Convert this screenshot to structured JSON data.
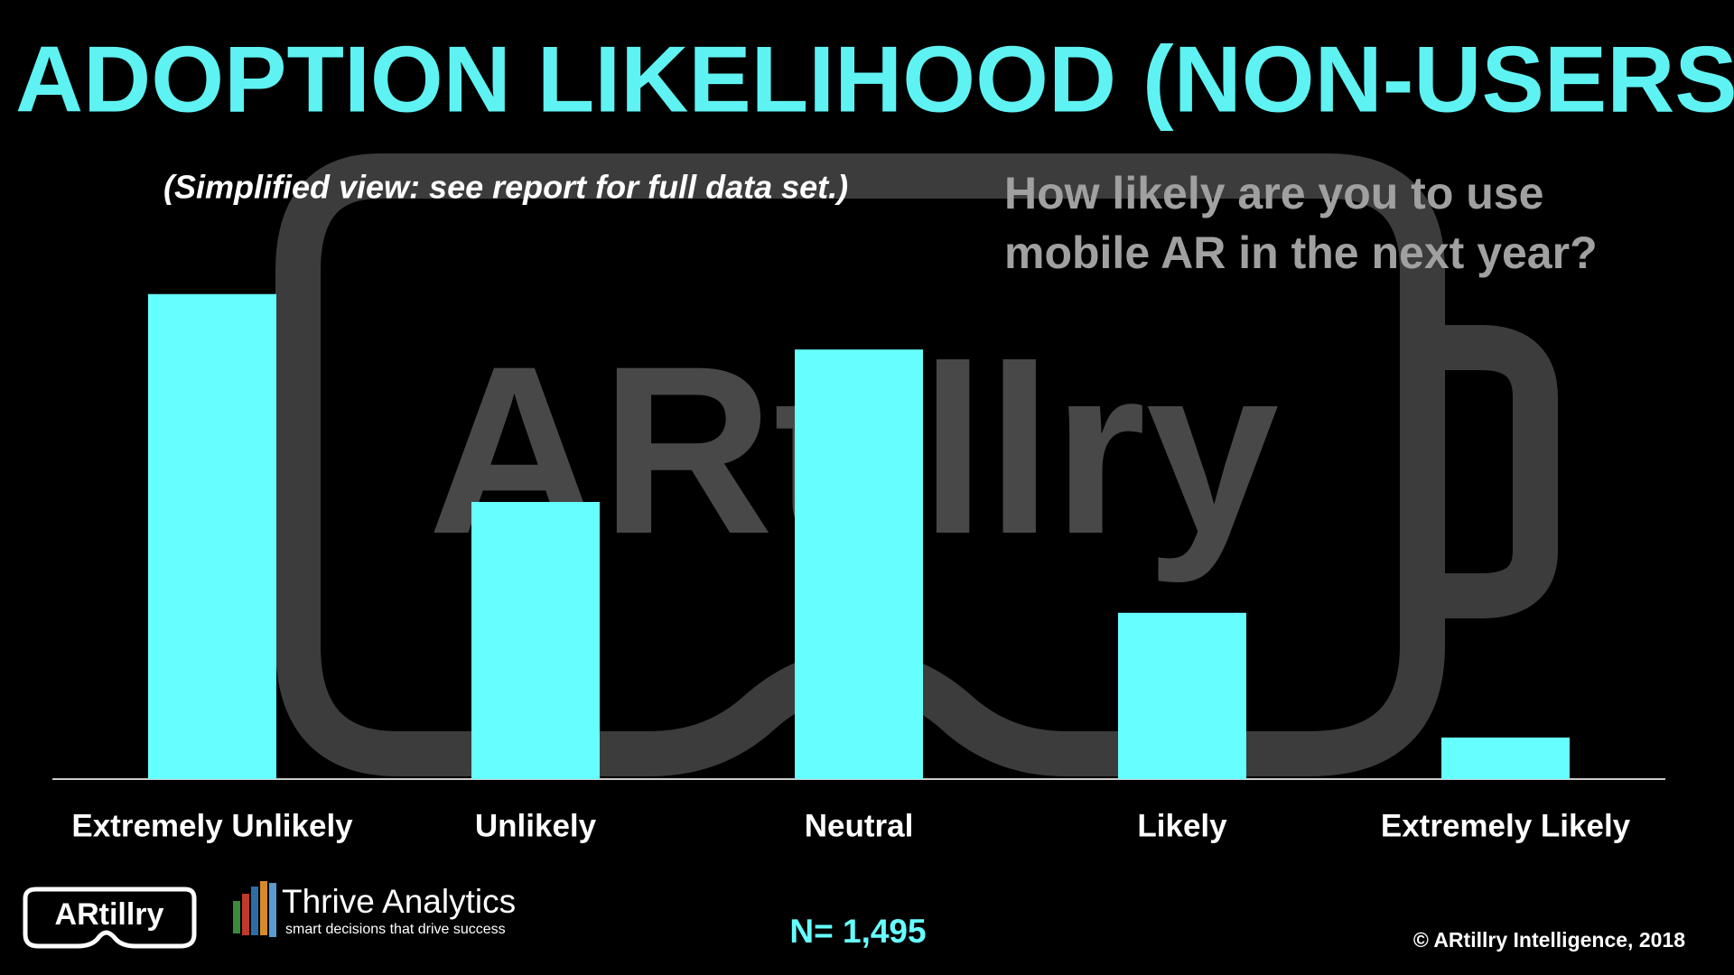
{
  "chart_data": {
    "type": "bar",
    "title": "ADOPTION LIKELIHOOD (NON-USERS)",
    "subtitle": "(Simplified view: see report for full data set.)",
    "question": [
      "How likely are you to use",
      "mobile AR in the next year?"
    ],
    "categories": [
      "Extremely Unlikely",
      "Unlikely",
      "Neutral",
      "Likely",
      "Extremely Likely"
    ],
    "values": [
      35,
      20,
      31,
      12,
      3
    ],
    "color": "#66ffff",
    "sample_size": "N= 1,495",
    "copyright": "© ARtillry Intelligence, 2018"
  },
  "watermark": "ARtillry",
  "logos": {
    "artillry": "ARtillry",
    "thrive": "Thrive Analytics",
    "thrive_tagline": "smart decisions that drive success"
  }
}
